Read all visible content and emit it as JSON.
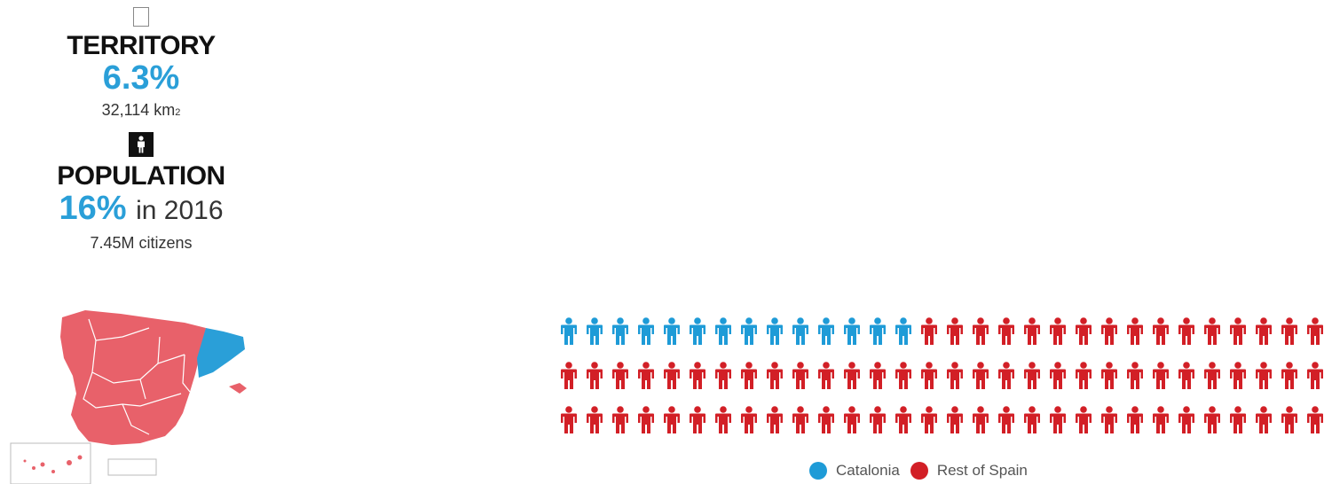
{
  "territory": {
    "icon": "map-outline-icon",
    "title": "TERRITORY",
    "percent": "6.3%",
    "area_number": "32,114 km",
    "area_unit_sub": "2"
  },
  "population": {
    "icon": "person-icon",
    "title": "POPULATION",
    "percent": "16%",
    "year_text": "in 2016",
    "citizens": "7.45M citizens"
  },
  "map": {
    "icon": "spain-regions-map",
    "colors": {
      "catalonia": "#2a9fd8",
      "rest": "#e8616a"
    }
  },
  "chart_data": {
    "type": "pictogram",
    "title": "",
    "total_icons": 90,
    "rows": 3,
    "icons_per_row": 30,
    "series": [
      {
        "name": "Catalonia",
        "count": 14,
        "color": "#1e9bd7"
      },
      {
        "name": "Rest of Spain",
        "count": 76,
        "color": "#d21f26"
      }
    ],
    "legend_placement": "bottom-center"
  },
  "legend": {
    "catalonia_label": "Catalonia",
    "rest_label": "Rest of Spain"
  }
}
